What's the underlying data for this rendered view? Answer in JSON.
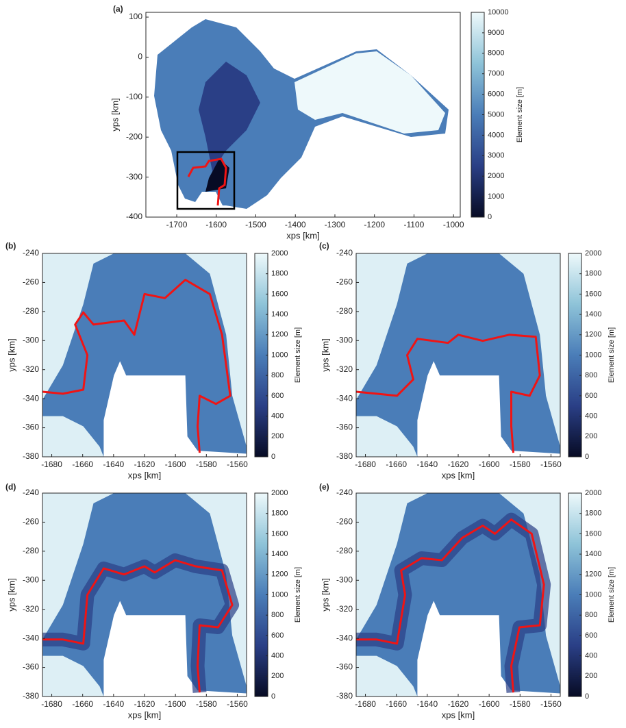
{
  "chart_data": [
    {
      "type": "heatmap",
      "panel_label": "(a)",
      "xlabel": "xps [km]",
      "ylabel": "yps [km]",
      "xlim": [
        -1778,
        -983
      ],
      "ylim": [
        -400,
        112
      ],
      "xticks": [
        -1700,
        -1600,
        -1500,
        -1400,
        -1300,
        -1200,
        -1100,
        -1000
      ],
      "yticks": [
        -400,
        -300,
        -200,
        -100,
        0,
        100
      ],
      "colorbar_label": "Element size [m]",
      "clim": [
        0,
        10000
      ],
      "cticks": [
        0,
        1000,
        2000,
        3000,
        4000,
        5000,
        6000,
        7000,
        8000,
        9000,
        10000
      ],
      "colormap": [
        "#070b24",
        "#2a3f86",
        "#4a7db8",
        "#8ec3d8",
        "#eef9fb"
      ]
    },
    {
      "type": "heatmap",
      "panel_label": "(b)",
      "xlabel": "xps [km]",
      "ylabel": "yps [km]",
      "xlim": [
        -1686,
        -1554
      ],
      "ylim": [
        -380,
        -240
      ],
      "xticks": [
        -1680,
        -1660,
        -1640,
        -1620,
        -1600,
        -1580,
        -1560
      ],
      "yticks": [
        -380,
        -360,
        -340,
        -320,
        -300,
        -280,
        -260,
        -240
      ],
      "colorbar_label": "Element size [m]",
      "clim": [
        0,
        2000
      ],
      "cticks": [
        0,
        200,
        400,
        600,
        800,
        1000,
        1200,
        1400,
        1600,
        1800,
        2000
      ],
      "colormap": [
        "#070b24",
        "#2a3f86",
        "#4a7db8",
        "#8ec3d8",
        "#eef9fb"
      ]
    },
    {
      "type": "heatmap",
      "panel_label": "(c)",
      "xlabel": "xps [km]",
      "ylabel": "yps [km]",
      "xlim": [
        -1686,
        -1554
      ],
      "ylim": [
        -380,
        -240
      ],
      "xticks": [
        -1680,
        -1660,
        -1640,
        -1620,
        -1600,
        -1580,
        -1560
      ],
      "yticks": [
        -380,
        -360,
        -340,
        -320,
        -300,
        -280,
        -260,
        -240
      ],
      "colorbar_label": "Element size [m]",
      "clim": [
        0,
        2000
      ],
      "cticks": [
        0,
        200,
        400,
        600,
        800,
        1000,
        1200,
        1400,
        1600,
        1800,
        2000
      ],
      "colormap": [
        "#070b24",
        "#2a3f86",
        "#4a7db8",
        "#8ec3d8",
        "#eef9fb"
      ]
    },
    {
      "type": "heatmap",
      "panel_label": "(d)",
      "xlabel": "xps [km]",
      "ylabel": "yps [km]",
      "xlim": [
        -1686,
        -1554
      ],
      "ylim": [
        -380,
        -240
      ],
      "xticks": [
        -1680,
        -1660,
        -1640,
        -1620,
        -1600,
        -1580,
        -1560
      ],
      "yticks": [
        -380,
        -360,
        -340,
        -320,
        -300,
        -280,
        -260,
        -240
      ],
      "colorbar_label": "Element size [m]",
      "clim": [
        0,
        2000
      ],
      "cticks": [
        0,
        200,
        400,
        600,
        800,
        1000,
        1200,
        1400,
        1600,
        1800,
        2000
      ],
      "colormap": [
        "#070b24",
        "#2a3f86",
        "#4a7db8",
        "#8ec3d8",
        "#eef9fb"
      ]
    },
    {
      "type": "heatmap",
      "panel_label": "(e)",
      "xlabel": "xps [km]",
      "ylabel": "yps [km]",
      "xlim": [
        -1686,
        -1554
      ],
      "ylim": [
        -380,
        -240
      ],
      "xticks": [
        -1680,
        -1660,
        -1640,
        -1620,
        -1600,
        -1580,
        -1560
      ],
      "yticks": [
        -380,
        -360,
        -340,
        -320,
        -300,
        -280,
        -260,
        -240
      ],
      "colorbar_label": "Element size [m]",
      "clim": [
        0,
        2000
      ],
      "cticks": [
        0,
        200,
        400,
        600,
        800,
        1000,
        1200,
        1400,
        1600,
        1800,
        2000
      ],
      "colormap": [
        "#070b24",
        "#2a3f86",
        "#4a7db8",
        "#8ec3d8",
        "#eef9fb"
      ]
    }
  ]
}
